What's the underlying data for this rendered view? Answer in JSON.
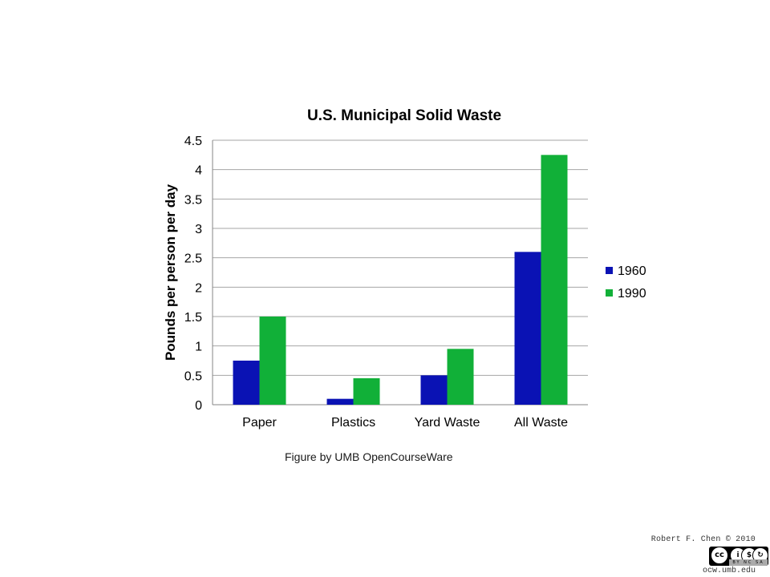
{
  "chart_data": {
    "type": "bar",
    "title": "U.S. Municipal  Solid Waste",
    "ylabel": "Pounds per person per day",
    "xlabel": "",
    "categories": [
      "Paper",
      "Plastics",
      "Yard Waste",
      "All Waste"
    ],
    "series": [
      {
        "name": "1960",
        "values": [
          0.75,
          0.1,
          0.5,
          2.6
        ],
        "color": "#0a12b4"
      },
      {
        "name": "1990",
        "values": [
          1.5,
          0.45,
          0.95,
          4.25
        ],
        "color": "#11b038"
      }
    ],
    "yticks": [
      "0",
      "0.5",
      "1",
      "1.5",
      "2",
      "2.5",
      "3",
      "3.5",
      "4",
      "4.5"
    ],
    "ylim": [
      0,
      4.5
    ],
    "grid": true,
    "legend_position": "right"
  },
  "caption": "Figure by UMB OpenCourseWare",
  "credit": "Robert F. Chen © 2010",
  "site": "ocw.umb.edu",
  "license": {
    "glyphs": [
      "cc",
      "i",
      "$",
      "↻"
    ],
    "label": "BY NC SA"
  },
  "colors": {
    "grid": "#a6a6a6",
    "axis": "#868686",
    "text": "#000000"
  }
}
